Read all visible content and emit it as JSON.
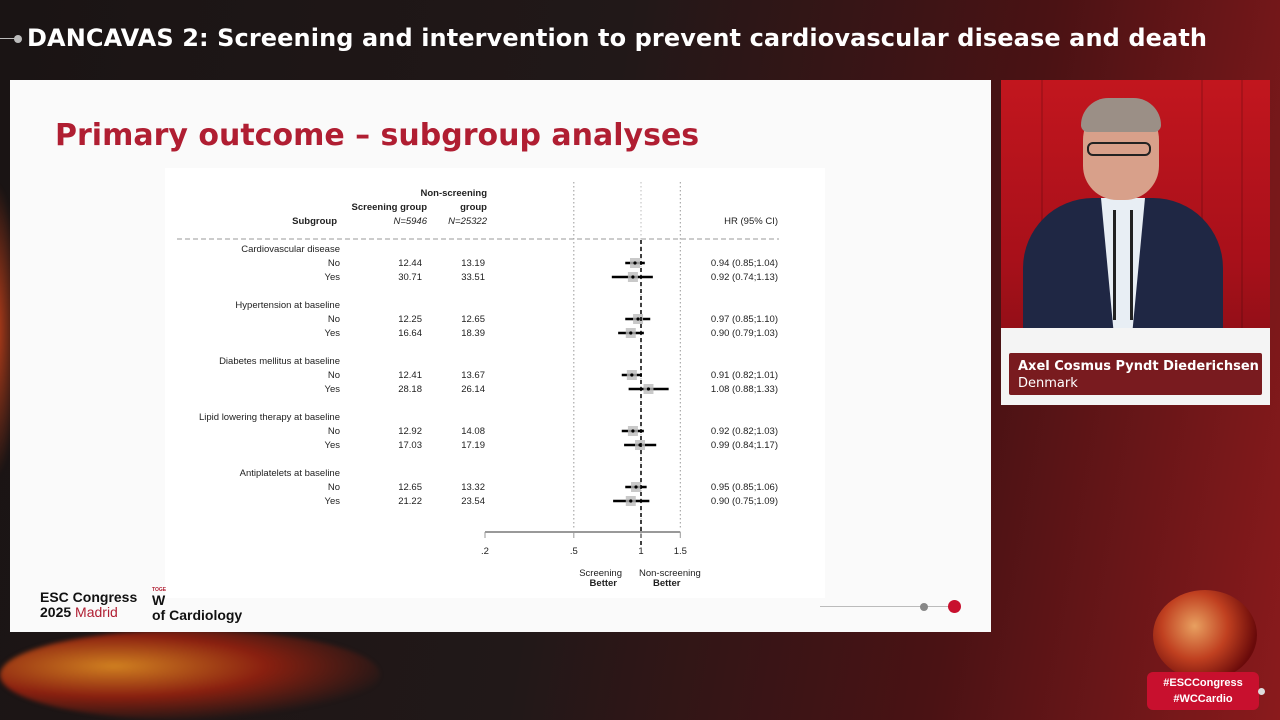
{
  "banner": {
    "title": "DANCAVAS 2: Screening and intervention to prevent cardiovascular disease and death"
  },
  "slide": {
    "title": "Primary outcome – subgroup analyses",
    "logo": {
      "line1": "ESC Congress",
      "line2a": "2025",
      "line2b": "Madrid",
      "tiny": "TOGE",
      "world1": "W",
      "world2": "of Cardiology"
    }
  },
  "speaker": {
    "name": "Axel Cosmus Pyndt Diederichsen",
    "country": "Denmark"
  },
  "hashtags": {
    "tag1": "#ESCCongress",
    "tag2": "#WCCardio"
  },
  "colors": {
    "accent": "#b01e32",
    "banner_text": "#ffffff",
    "nameplate": "#6e080c"
  },
  "chart_data": {
    "type": "forest",
    "headers": {
      "subgroup": "Subgroup",
      "screening": "Screening group",
      "screening_n": "N=5946",
      "nonscreening1": "Non-screening",
      "nonscreening2": "group",
      "nonscreening_n": "N=25322",
      "hr": "HR (95% CI)"
    },
    "x_axis": {
      "scale": "log",
      "ticks": [
        0.2,
        0.5,
        1,
        1.5
      ],
      "tick_labels": [
        ".2",
        ".5",
        "1",
        "1.5"
      ],
      "reference": 1
    },
    "x_labels": {
      "left1": "Screening",
      "left2": "Better",
      "right1": "Non-screening",
      "right2": "Better"
    },
    "groups": [
      {
        "label": "Cardiovascular disease",
        "rows": [
          {
            "label": "No",
            "screening": "12.44",
            "nonscreening": "13.19",
            "hr": 0.94,
            "lo": 0.85,
            "hi": 1.04,
            "text": "0.94 (0.85;1.04)"
          },
          {
            "label": "Yes",
            "screening": "30.71",
            "nonscreening": "33.51",
            "hr": 0.92,
            "lo": 0.74,
            "hi": 1.13,
            "text": "0.92 (0.74;1.13)"
          }
        ]
      },
      {
        "label": "Hypertension at baseline",
        "rows": [
          {
            "label": "No",
            "screening": "12.25",
            "nonscreening": "12.65",
            "hr": 0.97,
            "lo": 0.85,
            "hi": 1.1,
            "text": "0.97 (0.85;1.10)"
          },
          {
            "label": "Yes",
            "screening": "16.64",
            "nonscreening": "18.39",
            "hr": 0.9,
            "lo": 0.79,
            "hi": 1.03,
            "text": "0.90 (0.79;1.03)"
          }
        ]
      },
      {
        "label": "Diabetes mellitus at baseline",
        "rows": [
          {
            "label": "No",
            "screening": "12.41",
            "nonscreening": "13.67",
            "hr": 0.91,
            "lo": 0.82,
            "hi": 1.01,
            "text": "0.91 (0.82;1.01)"
          },
          {
            "label": "Yes",
            "screening": "28.18",
            "nonscreening": "26.14",
            "hr": 1.08,
            "lo": 0.88,
            "hi": 1.33,
            "text": "1.08 (0.88;1.33)"
          }
        ]
      },
      {
        "label": "Lipid lowering therapy at baseline",
        "rows": [
          {
            "label": "No",
            "screening": "12.92",
            "nonscreening": "14.08",
            "hr": 0.92,
            "lo": 0.82,
            "hi": 1.03,
            "text": "0.92 (0.82;1.03)"
          },
          {
            "label": "Yes",
            "screening": "17.03",
            "nonscreening": "17.19",
            "hr": 0.99,
            "lo": 0.84,
            "hi": 1.17,
            "text": "0.99 (0.84;1.17)"
          }
        ]
      },
      {
        "label": "Antiplatelets at baseline",
        "rows": [
          {
            "label": "No",
            "screening": "12.65",
            "nonscreening": "13.32",
            "hr": 0.95,
            "lo": 0.85,
            "hi": 1.06,
            "text": "0.95 (0.85;1.06)"
          },
          {
            "label": "Yes",
            "screening": "21.22",
            "nonscreening": "23.54",
            "hr": 0.9,
            "lo": 0.75,
            "hi": 1.09,
            "text": "0.90 (0.75;1.09)"
          }
        ]
      }
    ]
  }
}
